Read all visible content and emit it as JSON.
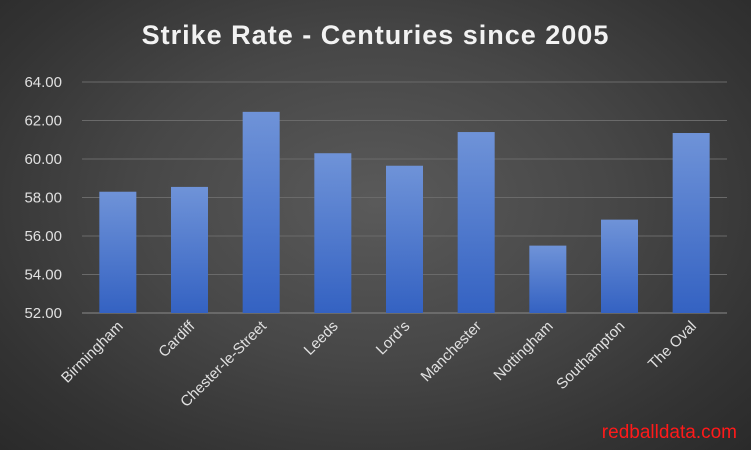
{
  "chart_data": {
    "type": "bar",
    "title": "Strike Rate - Centuries since 2005",
    "categories": [
      "Birmingham",
      "Cardiff",
      "Chester-le-Street",
      "Leeds",
      "Lord's",
      "Manchester",
      "Nottingham",
      "Southampton",
      "The Oval"
    ],
    "values": [
      58.3,
      58.55,
      62.45,
      60.3,
      59.65,
      61.4,
      55.5,
      56.85,
      61.35
    ],
    "ylim": [
      52,
      64
    ],
    "yticks": [
      "52.00",
      "54.00",
      "56.00",
      "58.00",
      "60.00",
      "62.00",
      "64.00"
    ],
    "xlabel": "",
    "ylabel": "",
    "grid": true,
    "colors": {
      "bar_top": "#6f93d8",
      "bar_bottom": "#3462c2",
      "grid": "#6a6a6a",
      "text": "#e0e0e0"
    }
  },
  "watermark": "redballdata.com"
}
